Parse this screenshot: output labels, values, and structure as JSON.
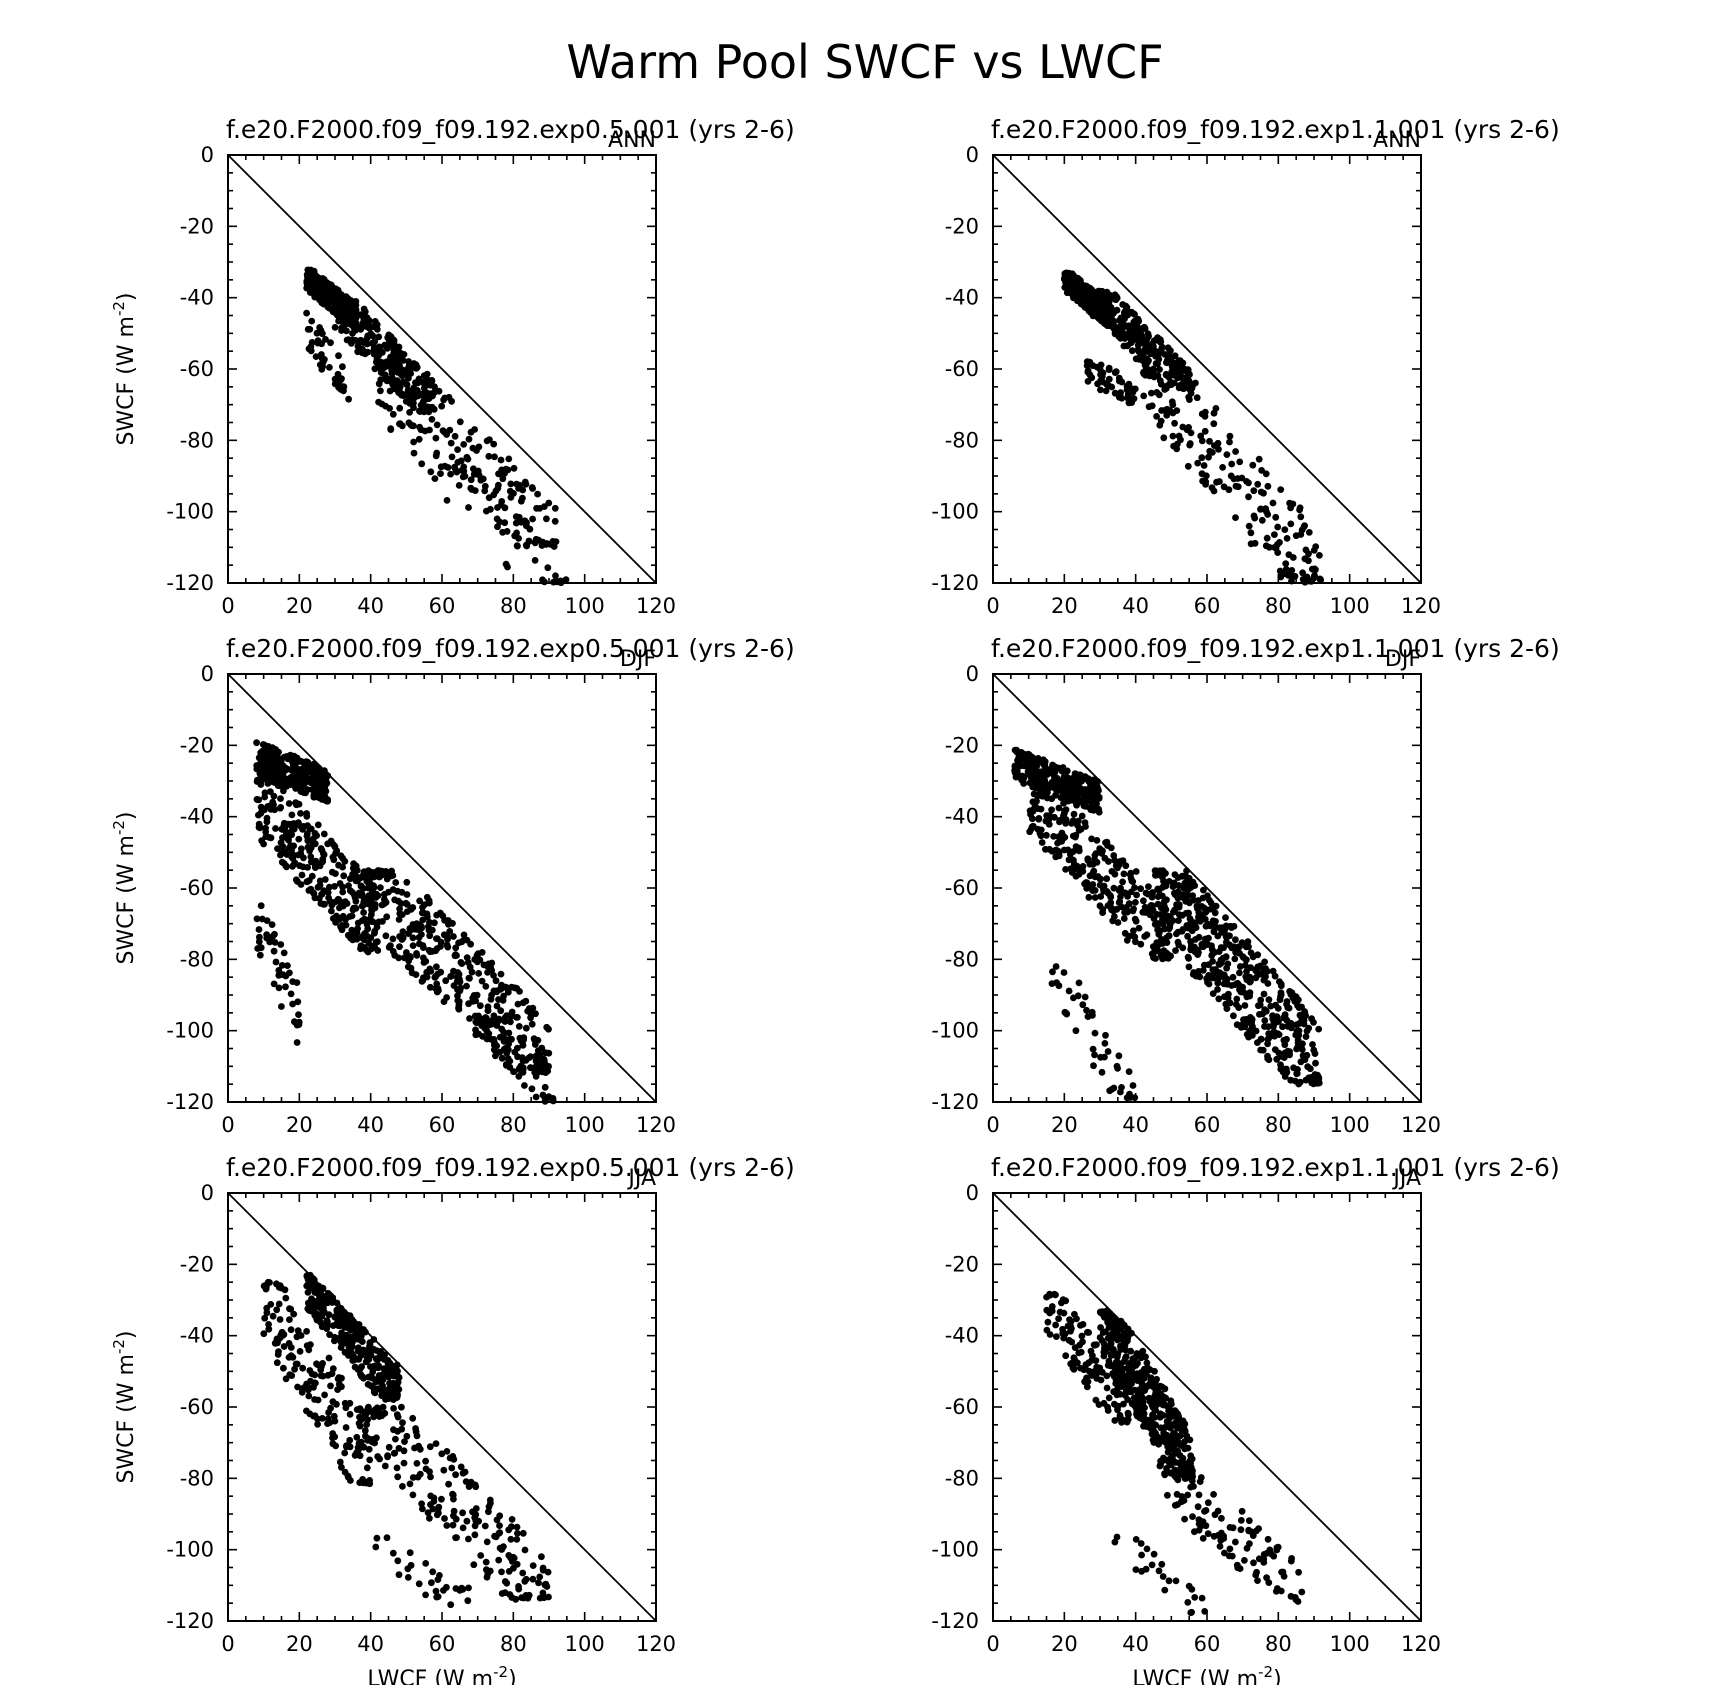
{
  "figure": {
    "title": "Warm Pool SWCF vs LWCF",
    "marker_color": "#000000",
    "x_ticks": [
      0,
      20,
      40,
      60,
      80,
      100,
      120
    ],
    "y_ticks": [
      0,
      -20,
      -40,
      -60,
      -80,
      -100,
      -120
    ],
    "xlabel_main": "LWCF (W m",
    "ylabel_main": "SWCF (W m",
    "label_exp": "-2",
    "label_close": ")"
  },
  "chart_data": [
    {
      "type": "scatter",
      "title": "f.e20.F2000.f09_f09.192.exp0.5.001 (yrs 2-6)",
      "season": "ANN",
      "xlim": [
        0,
        120
      ],
      "ylim": [
        -120,
        0
      ],
      "reference_line": "y = -x",
      "clusters": [
        {
          "x": [
            22,
            36
          ],
          "y": [
            -48,
            -32
          ],
          "n": 300,
          "slope": -0.8
        },
        {
          "x": [
            30,
            58
          ],
          "y": [
            -72,
            -40
          ],
          "n": 240,
          "slope": -1.05
        },
        {
          "x": [
            42,
            92
          ],
          "y": [
            -110,
            -58
          ],
          "n": 180,
          "slope": -1.05
        },
        {
          "x": [
            22,
            34
          ],
          "y": [
            -70,
            -44
          ],
          "n": 40,
          "slope": -1.3
        },
        {
          "x": [
            45,
            95
          ],
          "y": [
            -120,
            -75
          ],
          "n": 40,
          "slope": -1.2
        }
      ]
    },
    {
      "type": "scatter",
      "title": "f.e20.F2000.f09_f09.192.exp1.1.001 (yrs 2-6)",
      "season": "ANN",
      "xlim": [
        0,
        120
      ],
      "ylim": [
        -120,
        0
      ],
      "reference_line": "y = -x",
      "clusters": [
        {
          "x": [
            20,
            34
          ],
          "y": [
            -48,
            -33
          ],
          "n": 300,
          "slope": -0.85
        },
        {
          "x": [
            26,
            56
          ],
          "y": [
            -66,
            -38
          ],
          "n": 260,
          "slope": -1.0
        },
        {
          "x": [
            42,
            93
          ],
          "y": [
            -120,
            -60
          ],
          "n": 200,
          "slope": -1.2
        },
        {
          "x": [
            26,
            40
          ],
          "y": [
            -72,
            -55
          ],
          "n": 50,
          "slope": -0.5
        }
      ]
    },
    {
      "type": "scatter",
      "title": "f.e20.F2000.f09_f09.192.exp0.5.001 (yrs 2-6)",
      "season": "DJF",
      "xlim": [
        0,
        120
      ],
      "ylim": [
        -120,
        0
      ],
      "reference_line": "y = -x",
      "clusters": [
        {
          "x": [
            8,
            28
          ],
          "y": [
            -38,
            -17
          ],
          "n": 260,
          "slope": -0.4
        },
        {
          "x": [
            8,
            42
          ],
          "y": [
            -78,
            -28
          ],
          "n": 300,
          "slope": -1.1
        },
        {
          "x": [
            8,
            20
          ],
          "y": [
            -105,
            -60
          ],
          "n": 45,
          "slope": -2.5
        },
        {
          "x": [
            38,
            90
          ],
          "y": [
            -112,
            -55
          ],
          "n": 420,
          "slope": -1.0
        },
        {
          "x": [
            70,
            92
          ],
          "y": [
            -120,
            -95
          ],
          "n": 30,
          "slope": -1.1
        }
      ]
    },
    {
      "type": "scatter",
      "title": "f.e20.F2000.f09_f09.192.exp1.1.001 (yrs 2-6)",
      "season": "DJF",
      "xlim": [
        0,
        120
      ],
      "ylim": [
        -120,
        0
      ],
      "reference_line": "y = -x",
      "clusters": [
        {
          "x": [
            6,
            30
          ],
          "y": [
            -40,
            -20
          ],
          "n": 260,
          "slope": -0.4
        },
        {
          "x": [
            10,
            50
          ],
          "y": [
            -80,
            -30
          ],
          "n": 300,
          "slope": -1.1
        },
        {
          "x": [
            16,
            40
          ],
          "y": [
            -120,
            -82
          ],
          "n": 45,
          "slope": -1.8
        },
        {
          "x": [
            45,
            92
          ],
          "y": [
            -115,
            -55
          ],
          "n": 480,
          "slope": -1.15
        }
      ]
    },
    {
      "type": "scatter",
      "title": "f.e20.F2000.f09_f09.192.exp0.5.001 (yrs 2-6)",
      "season": "JJA",
      "xlim": [
        0,
        120
      ],
      "ylim": [
        -120,
        0
      ],
      "reference_line": "y = -x",
      "clusters": [
        {
          "x": [
            22,
            48
          ],
          "y": [
            -58,
            -23
          ],
          "n": 320,
          "slope": -1.25
        },
        {
          "x": [
            10,
            40
          ],
          "y": [
            -82,
            -25
          ],
          "n": 170,
          "slope": -1.6
        },
        {
          "x": [
            38,
            90
          ],
          "y": [
            -114,
            -60
          ],
          "n": 200,
          "slope": -1.05
        },
        {
          "x": [
            40,
            70
          ],
          "y": [
            -119,
            -96
          ],
          "n": 30,
          "slope": -0.6
        }
      ]
    },
    {
      "type": "scatter",
      "title": "f.e20.F2000.f09_f09.192.exp1.1.001 (yrs 2-6)",
      "season": "JJA",
      "xlim": [
        0,
        120
      ],
      "ylim": [
        -120,
        0
      ],
      "reference_line": "y = -x",
      "clusters": [
        {
          "x": [
            30,
            56
          ],
          "y": [
            -80,
            -33
          ],
          "n": 420,
          "slope": -1.7
        },
        {
          "x": [
            15,
            38
          ],
          "y": [
            -65,
            -28
          ],
          "n": 120,
          "slope": -1.4
        },
        {
          "x": [
            46,
            87
          ],
          "y": [
            -115,
            -75
          ],
          "n": 110,
          "slope": -0.85
        },
        {
          "x": [
            34,
            60
          ],
          "y": [
            -118,
            -96
          ],
          "n": 25,
          "slope": -0.8
        }
      ]
    }
  ]
}
